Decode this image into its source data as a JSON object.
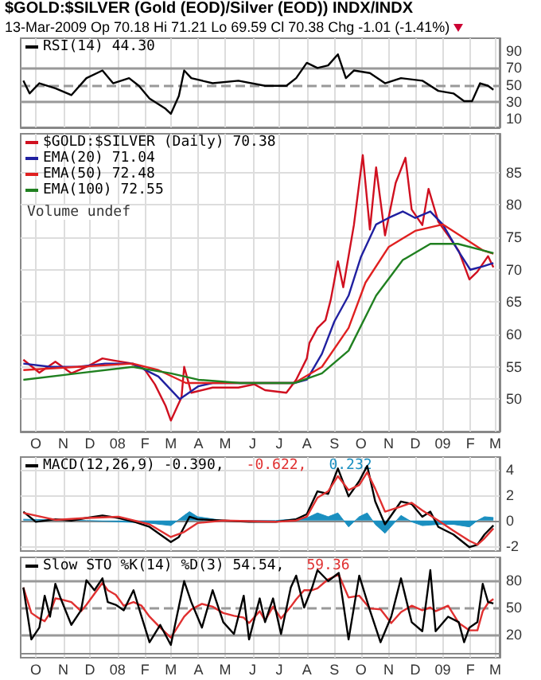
{
  "chart_data": [
    {
      "type": "line",
      "title": "$GOLD:$SILVER (Gold (EOD)/Silver (EOD)) INDX/INDX",
      "subtitle": "13-Mar-2009   Op 70.18  Hi 71.21  Lo 69.59  Cl 70.38  Chg -1.01 (-1.41%)",
      "grid": "x",
      "legend": "top left",
      "tick_labels": "y",
      "xlim": [
        "2007-09-28",
        "2009-03-20"
      ],
      "xticks": [
        {
          "value": "2007-10-15",
          "label": null
        },
        {
          "value": "2007-11-15",
          "label": null
        },
        {
          "value": "2007-12-15",
          "label": null
        },
        {
          "value": "2008-01-15",
          "label": null
        },
        {
          "value": "2008-02-15",
          "label": null
        },
        {
          "value": "2008-03-15",
          "label": null
        },
        {
          "value": "2008-04-15",
          "label": null
        },
        {
          "value": "2008-05-15",
          "label": null
        },
        {
          "value": "2008-06-15",
          "label": null
        },
        {
          "value": "2008-07-15",
          "label": null
        },
        {
          "value": "2008-08-15",
          "label": null
        },
        {
          "value": "2008-09-15",
          "label": null
        },
        {
          "value": "2008-10-15",
          "label": null
        },
        {
          "value": "2008-11-15",
          "label": null
        },
        {
          "value": "2008-12-15",
          "label": null
        },
        {
          "value": "2009-01-15",
          "label": null
        },
        {
          "value": "2009-02-15",
          "label": null
        },
        {
          "value": "2009-03-15",
          "label": null
        }
      ],
      "ylim": [
        0,
        105
      ],
      "yticks": [
        10,
        30,
        50,
        70,
        90
      ],
      "ref_lines": [
        {
          "axis": "y",
          "value": 70,
          "color": "#999999",
          "line_style": "solid"
        },
        {
          "axis": "y",
          "value": 50,
          "color": "#999999",
          "line_style": "dashed"
        },
        {
          "axis": "y",
          "value": 30,
          "color": "#999999",
          "line_style": "solid"
        }
      ],
      "series": [
        {
          "name": "RSI(14) 44.30",
          "color": "#000000",
          "x": [
            "2007-10-01",
            "2007-10-08",
            "2007-10-19",
            "2007-11-06",
            "2007-11-24",
            "2007-12-11",
            "2007-12-29",
            "2008-01-10",
            "2008-01-28",
            "2008-02-08",
            "2008-02-20",
            "2008-03-09",
            "2008-03-15",
            "2008-03-24",
            "2008-03-30",
            "2008-04-07",
            "2008-05-01",
            "2008-05-30",
            "2008-06-29",
            "2008-07-23",
            "2008-08-03",
            "2008-08-15",
            "2008-08-27",
            "2008-09-08",
            "2008-09-19",
            "2008-09-28",
            "2008-10-07",
            "2008-10-25",
            "2008-11-11",
            "2008-11-29",
            "2008-12-23",
            "2009-01-10",
            "2009-01-27",
            "2009-02-08",
            "2009-02-17",
            "2009-02-26",
            "2009-03-07",
            "2009-03-13"
          ],
          "values": [
            55,
            40,
            52,
            46,
            38,
            58,
            67,
            52,
            58,
            49,
            34,
            22,
            16,
            37,
            67,
            58,
            52,
            55,
            49,
            49,
            58,
            76,
            70,
            73,
            86,
            58,
            67,
            64,
            52,
            58,
            55,
            43,
            40,
            31,
            31,
            52,
            49,
            44.3
          ]
        }
      ]
    },
    {
      "type": "line",
      "grid": true,
      "legend": "top left",
      "annotations": [
        "Volume undef"
      ],
      "xlim": [
        "2007-09-28",
        "2009-03-20"
      ],
      "xticks": [
        {
          "value": "2007-10-15",
          "label": "O"
        },
        {
          "value": "2007-11-15",
          "label": "N"
        },
        {
          "value": "2007-12-15",
          "label": "D"
        },
        {
          "value": "2008-01-15",
          "label": "08"
        },
        {
          "value": "2008-02-15",
          "label": "F"
        },
        {
          "value": "2008-03-15",
          "label": "M"
        },
        {
          "value": "2008-04-15",
          "label": "A"
        },
        {
          "value": "2008-05-15",
          "label": "M"
        },
        {
          "value": "2008-06-15",
          "label": "J"
        },
        {
          "value": "2008-07-15",
          "label": "J"
        },
        {
          "value": "2008-08-15",
          "label": "A"
        },
        {
          "value": "2008-09-15",
          "label": "S"
        },
        {
          "value": "2008-10-15",
          "label": "O"
        },
        {
          "value": "2008-11-15",
          "label": "N"
        },
        {
          "value": "2008-12-15",
          "label": "D"
        },
        {
          "value": "2009-01-15",
          "label": "09"
        },
        {
          "value": "2009-02-15",
          "label": "F"
        },
        {
          "value": "2009-03-15",
          "label": "M"
        }
      ],
      "ylim": [
        45,
        91
      ],
      "yticks": [
        50,
        55,
        60,
        65,
        70,
        75,
        80,
        85
      ],
      "series": [
        {
          "name": "$GOLD:$SILVER (Daily) 70.38",
          "color": "#d01020",
          "x": [
            "2007-10-01",
            "2007-10-19",
            "2007-11-06",
            "2007-11-24",
            "2007-12-11",
            "2007-12-29",
            "2008-01-10",
            "2008-01-28",
            "2008-02-14",
            "2008-02-26",
            "2008-03-09",
            "2008-03-15",
            "2008-03-27",
            "2008-03-30",
            "2008-04-07",
            "2008-05-01",
            "2008-05-30",
            "2008-06-17",
            "2008-06-29",
            "2008-07-23",
            "2008-08-03",
            "2008-08-15",
            "2008-08-18",
            "2008-08-27",
            "2008-09-05",
            "2008-09-11",
            "2008-09-19",
            "2008-09-25",
            "2008-10-07",
            "2008-10-17",
            "2008-10-25",
            "2008-11-01",
            "2008-11-11",
            "2008-11-23",
            "2008-12-04",
            "2008-12-11",
            "2008-12-23",
            "2008-12-30",
            "2009-01-10",
            "2009-01-21",
            "2009-02-02",
            "2009-02-14",
            "2009-02-23",
            "2009-03-07",
            "2009-03-13"
          ],
          "values": [
            56.1,
            54.1,
            55.8,
            54,
            55,
            56.3,
            56,
            55.6,
            54.7,
            52.3,
            49,
            46.7,
            50.3,
            55,
            51,
            51.8,
            51.8,
            52.3,
            51.4,
            51,
            53,
            56.3,
            58.7,
            61,
            62.2,
            65.4,
            71.3,
            67.3,
            76.9,
            87.7,
            76.2,
            85.8,
            75.3,
            83.4,
            87.3,
            79.3,
            76.9,
            82.5,
            77.4,
            75.3,
            72.9,
            68.5,
            69.7,
            72.1,
            70.38
          ]
        },
        {
          "name": "EMA(20) 71.04",
          "color": "#2020a0",
          "x": [
            "2007-10-01",
            "2007-11-01",
            "2007-12-01",
            "2008-01-01",
            "2008-02-01",
            "2008-03-01",
            "2008-03-25",
            "2008-04-15",
            "2008-05-01",
            "2008-06-01",
            "2008-07-01",
            "2008-08-01",
            "2008-08-15",
            "2008-09-01",
            "2008-09-15",
            "2008-10-01",
            "2008-10-15",
            "2008-11-01",
            "2008-11-15",
            "2008-12-01",
            "2008-12-15",
            "2009-01-01",
            "2009-01-15",
            "2009-02-01",
            "2009-02-15",
            "2009-03-01",
            "2009-03-13"
          ],
          "values": [
            55.5,
            55,
            55,
            55.5,
            55.5,
            53.5,
            50,
            52,
            52.5,
            52.5,
            52.5,
            52.5,
            53,
            57,
            62,
            66,
            72,
            77,
            78,
            79,
            78,
            79,
            77,
            73,
            70,
            70.5,
            71.04
          ]
        },
        {
          "name": "EMA(50) 72.48",
          "color": "#e02020",
          "x": [
            "2007-10-01",
            "2007-12-01",
            "2008-02-01",
            "2008-03-01",
            "2008-04-01",
            "2008-05-01",
            "2008-08-01",
            "2008-09-01",
            "2008-10-01",
            "2008-10-20",
            "2008-11-15",
            "2008-12-15",
            "2009-01-15",
            "2009-02-01",
            "2009-03-01",
            "2009-03-13"
          ],
          "values": [
            54.5,
            55,
            55.5,
            54.5,
            52.5,
            52.5,
            52.5,
            55,
            61,
            68,
            73.5,
            76,
            77,
            75.5,
            73,
            72.48
          ]
        },
        {
          "name": "EMA(100) 72.55",
          "color": "#208020",
          "x": [
            "2007-10-01",
            "2007-12-01",
            "2008-02-01",
            "2008-03-15",
            "2008-04-15",
            "2008-06-01",
            "2008-08-01",
            "2008-09-01",
            "2008-10-01",
            "2008-11-01",
            "2008-12-01",
            "2009-01-01",
            "2009-02-01",
            "2009-03-01",
            "2009-03-13"
          ],
          "values": [
            53,
            54,
            55,
            54,
            53,
            52.5,
            52.5,
            54,
            57.5,
            66,
            71.5,
            74,
            74,
            73,
            72.55
          ]
        }
      ]
    },
    {
      "type": "line",
      "grid": true,
      "legend": "top left",
      "tick_labels": "y",
      "xlim": [
        "2007-09-28",
        "2009-03-20"
      ],
      "xticks": [
        {
          "value": "2007-10-15",
          "label": null
        },
        {
          "value": "2007-11-15",
          "label": null
        },
        {
          "value": "2007-12-15",
          "label": null
        },
        {
          "value": "2008-01-15",
          "label": null
        },
        {
          "value": "2008-02-15",
          "label": null
        },
        {
          "value": "2008-03-15",
          "label": null
        },
        {
          "value": "2008-04-15",
          "label": null
        },
        {
          "value": "2008-05-15",
          "label": null
        },
        {
          "value": "2008-06-15",
          "label": null
        },
        {
          "value": "2008-07-15",
          "label": null
        },
        {
          "value": "2008-08-15",
          "label": null
        },
        {
          "value": "2008-09-15",
          "label": null
        },
        {
          "value": "2008-10-15",
          "label": null
        },
        {
          "value": "2008-11-15",
          "label": null
        },
        {
          "value": "2008-12-15",
          "label": null
        },
        {
          "value": "2009-01-15",
          "label": null
        },
        {
          "value": "2009-02-15",
          "label": null
        },
        {
          "value": "2009-03-15",
          "label": null
        }
      ],
      "ylim": [
        -2.4,
        5
      ],
      "yticks": [
        -2,
        0,
        2,
        4
      ],
      "series": [
        {
          "name": "0.232",
          "type": "area",
          "color": "#1a8fc0",
          "x": [
            "2007-10-01",
            "2007-11-06",
            "2007-12-11",
            "2008-01-16",
            "2008-02-20",
            "2008-03-15",
            "2008-03-30",
            "2008-04-05",
            "2008-04-14",
            "2008-05-13",
            "2008-07-11",
            "2008-08-15",
            "2008-08-27",
            "2008-09-08",
            "2008-09-19",
            "2008-10-01",
            "2008-10-13",
            "2008-10-22",
            "2008-10-31",
            "2008-11-11",
            "2008-11-29",
            "2008-12-11",
            "2008-12-23",
            "2009-01-10",
            "2009-01-27",
            "2009-02-14",
            "2009-02-23",
            "2009-03-03",
            "2009-03-13"
          ],
          "values": [
            0.1,
            0.05,
            0,
            -0.1,
            -0.2,
            -0.4,
            0.4,
            0.7,
            0.3,
            0,
            0,
            0.2,
            0.6,
            0.3,
            0.6,
            -0.5,
            0.3,
            0.6,
            -0.3,
            -1.0,
            0.4,
            -0.1,
            -0.4,
            -0.3,
            -0.3,
            -0.5,
            0,
            0.3,
            0.232
          ]
        },
        {
          "name": "MACD(12,26,9) -0.390,",
          "color": "#000000",
          "x": [
            "2007-10-01",
            "2007-10-15",
            "2007-11-06",
            "2007-11-24",
            "2007-12-11",
            "2007-12-29",
            "2008-01-16",
            "2008-02-03",
            "2008-02-20",
            "2008-03-03",
            "2008-03-15",
            "2008-03-24",
            "2008-03-30",
            "2008-04-05",
            "2008-04-14",
            "2008-05-13",
            "2008-06-11",
            "2008-07-11",
            "2008-08-03",
            "2008-08-15",
            "2008-08-27",
            "2008-09-08",
            "2008-09-19",
            "2008-10-01",
            "2008-10-13",
            "2008-10-22",
            "2008-10-31",
            "2008-11-11",
            "2008-11-29",
            "2008-12-11",
            "2008-12-23",
            "2009-01-01",
            "2009-01-10",
            "2009-01-27",
            "2009-02-14",
            "2009-02-23",
            "2009-03-03",
            "2009-03-13"
          ],
          "values": [
            0.7,
            -0.1,
            0.1,
            0,
            0.2,
            0.4,
            0.2,
            -0.1,
            -0.5,
            -1.1,
            -1.7,
            -1.3,
            -0.5,
            0.3,
            0.1,
            0,
            -0.1,
            -0.1,
            0.1,
            0.5,
            2.3,
            2.1,
            4.1,
            1.9,
            3.1,
            4.3,
            1.5,
            -0.3,
            1.5,
            1.3,
            0.3,
            0.7,
            -0.5,
            -1.1,
            -2.1,
            -1.9,
            -1.1,
            -0.39
          ]
        },
        {
          "name": "-0.622,",
          "color": "#e03030",
          "x": [
            "2007-10-01",
            "2007-11-06",
            "2007-12-11",
            "2008-01-16",
            "2008-02-20",
            "2008-03-15",
            "2008-03-30",
            "2008-04-14",
            "2008-05-13",
            "2008-07-11",
            "2008-08-03",
            "2008-08-15",
            "2008-08-27",
            "2008-09-08",
            "2008-09-19",
            "2008-10-01",
            "2008-10-13",
            "2008-10-22",
            "2008-10-31",
            "2008-11-11",
            "2008-11-29",
            "2008-12-11",
            "2008-12-23",
            "2009-01-10",
            "2009-01-27",
            "2009-02-14",
            "2009-02-23",
            "2009-03-03",
            "2009-03-13"
          ],
          "values": [
            0.6,
            0.05,
            0.2,
            0.3,
            -0.3,
            -1.3,
            -0.9,
            -0.2,
            0,
            -0.1,
            0,
            0.3,
            1.8,
            2.3,
            3.5,
            2.4,
            2.8,
            3.8,
            2.5,
            0.7,
            1.1,
            1.4,
            0.8,
            0,
            -0.8,
            -1.6,
            -1.9,
            -1.4,
            -0.622
          ]
        }
      ]
    },
    {
      "type": "line",
      "grid": "x",
      "legend": "top left",
      "xlim": [
        "2007-09-28",
        "2009-03-20"
      ],
      "xticks": [
        {
          "value": "2007-10-15",
          "label": "O"
        },
        {
          "value": "2007-11-15",
          "label": "N"
        },
        {
          "value": "2007-12-15",
          "label": "D"
        },
        {
          "value": "2008-01-15",
          "label": "08"
        },
        {
          "value": "2008-02-15",
          "label": "F"
        },
        {
          "value": "2008-03-15",
          "label": "M"
        },
        {
          "value": "2008-04-15",
          "label": "A"
        },
        {
          "value": "2008-05-15",
          "label": "M"
        },
        {
          "value": "2008-06-15",
          "label": "J"
        },
        {
          "value": "2008-07-15",
          "label": "J"
        },
        {
          "value": "2008-08-15",
          "label": "A"
        },
        {
          "value": "2008-09-15",
          "label": "S"
        },
        {
          "value": "2008-10-15",
          "label": "O"
        },
        {
          "value": "2008-11-15",
          "label": "N"
        },
        {
          "value": "2008-12-15",
          "label": "D"
        },
        {
          "value": "2009-01-15",
          "label": "09"
        },
        {
          "value": "2009-02-15",
          "label": "F"
        },
        {
          "value": "2009-03-15",
          "label": "M"
        }
      ],
      "ylim": [
        -5,
        105
      ],
      "yticks": [
        20,
        50,
        80
      ],
      "ref_lines": [
        {
          "axis": "y",
          "value": 80,
          "color": "#999999",
          "line_style": "solid"
        },
        {
          "axis": "y",
          "value": 50,
          "color": "#999999",
          "line_style": "dashed"
        },
        {
          "axis": "y",
          "value": 20,
          "color": "#999999",
          "line_style": "solid"
        }
      ],
      "series": [
        {
          "name": "59.36",
          "color": "#e03030",
          "x": [
            "2007-10-01",
            "2007-10-10",
            "2007-10-19",
            "2007-10-25",
            "2007-10-31",
            "2007-11-06",
            "2007-11-12",
            "2007-11-24",
            "2007-12-05",
            "2007-12-11",
            "2007-12-20",
            "2007-12-29",
            "2008-01-04",
            "2008-01-13",
            "2008-01-22",
            "2008-02-02",
            "2008-02-11",
            "2008-02-20",
            "2008-03-03",
            "2008-03-15",
            "2008-03-30",
            "2008-04-07",
            "2008-04-19",
            "2008-05-01",
            "2008-05-13",
            "2008-05-25",
            "2008-06-05",
            "2008-06-11",
            "2008-06-23",
            "2008-06-29",
            "2008-07-08",
            "2008-07-17",
            "2008-07-28",
            "2008-08-03",
            "2008-08-12",
            "2008-08-21",
            "2008-08-27",
            "2008-09-08",
            "2008-09-20",
            "2008-10-01",
            "2008-10-13",
            "2008-10-25",
            "2008-11-06",
            "2008-11-18",
            "2008-11-29",
            "2008-12-11",
            "2008-12-23",
            "2009-01-01",
            "2009-01-07",
            "2009-01-21",
            "2009-02-02",
            "2009-02-08",
            "2009-02-14",
            "2009-02-23",
            "2009-03-01",
            "2009-03-07",
            "2009-03-13"
          ],
          "values": [
            72,
            44,
            38,
            35,
            44,
            60,
            59,
            56,
            46,
            53,
            65,
            77,
            69,
            64,
            52,
            56,
            52,
            40,
            28,
            17,
            40,
            48,
            54,
            51,
            44,
            41,
            39,
            33,
            46,
            36,
            51,
            38,
            51,
            59,
            69,
            69,
            71,
            81,
            86,
            61,
            63,
            49,
            48,
            33,
            45,
            52,
            47,
            50,
            46,
            52,
            33,
            29,
            25,
            25,
            46,
            55,
            59.36
          ]
        },
        {
          "name": "Slow STO %K(14) %D(3) 54.54,",
          "color": "#000000",
          "x": [
            "2007-10-01",
            "2007-10-10",
            "2007-10-19",
            "2007-10-25",
            "2007-10-31",
            "2007-11-06",
            "2007-11-12",
            "2007-11-24",
            "2007-12-05",
            "2007-12-11",
            "2007-12-20",
            "2007-12-29",
            "2008-01-04",
            "2008-01-13",
            "2008-01-22",
            "2008-02-02",
            "2008-02-11",
            "2008-02-20",
            "2008-03-03",
            "2008-03-15",
            "2008-03-30",
            "2008-04-07",
            "2008-04-19",
            "2008-05-01",
            "2008-05-13",
            "2008-05-25",
            "2008-06-05",
            "2008-06-11",
            "2008-06-23",
            "2008-06-29",
            "2008-07-08",
            "2008-07-17",
            "2008-07-28",
            "2008-08-03",
            "2008-08-12",
            "2008-08-21",
            "2008-08-27",
            "2008-09-08",
            "2008-09-20",
            "2008-10-01",
            "2008-10-13",
            "2008-10-25",
            "2008-11-06",
            "2008-11-18",
            "2008-11-29",
            "2008-12-11",
            "2008-12-23",
            "2009-01-01",
            "2009-01-07",
            "2009-01-21",
            "2009-02-02",
            "2009-02-08",
            "2009-02-14",
            "2009-02-23",
            "2009-03-01",
            "2009-03-07",
            "2009-03-13"
          ],
          "values": [
            72,
            15,
            28,
            63,
            40,
            76,
            60,
            31,
            47,
            80,
            69,
            82,
            56,
            53,
            47,
            69,
            40,
            12,
            31,
            9,
            79,
            56,
            28,
            69,
            34,
            21,
            63,
            15,
            60,
            34,
            60,
            21,
            72,
            85,
            50,
            72,
            91,
            79,
            88,
            15,
            85,
            47,
            12,
            40,
            82,
            34,
            24,
            91,
            24,
            40,
            34,
            12,
            28,
            34,
            76,
            56,
            54.54
          ]
        }
      ]
    }
  ]
}
